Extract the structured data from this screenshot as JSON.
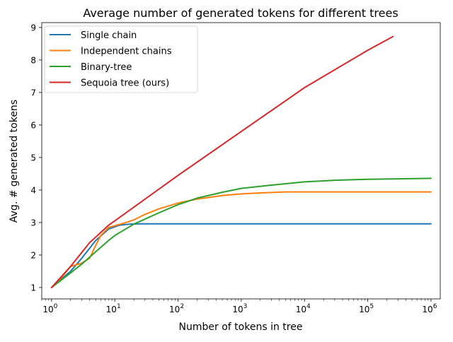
{
  "chart_data": {
    "type": "line",
    "title": "Average number of generated tokens for different trees",
    "xlabel": "Number of tokens in tree",
    "ylabel": "Avg. # generated tokens",
    "xscale": "log",
    "xlim": [
      0.7,
      1400000
    ],
    "ylim": [
      0.65,
      9.15
    ],
    "grid": false,
    "legend_position": "top-left",
    "xticks": [
      {
        "value": 1,
        "base": "10",
        "exp": "0"
      },
      {
        "value": 10,
        "base": "10",
        "exp": "1"
      },
      {
        "value": 100,
        "base": "10",
        "exp": "2"
      },
      {
        "value": 1000,
        "base": "10",
        "exp": "3"
      },
      {
        "value": 10000,
        "base": "10",
        "exp": "4"
      },
      {
        "value": 100000,
        "base": "10",
        "exp": "5"
      },
      {
        "value": 1000000,
        "base": "10",
        "exp": "6"
      }
    ],
    "yticks": [
      {
        "value": 1,
        "label": "1"
      },
      {
        "value": 2,
        "label": "2"
      },
      {
        "value": 3,
        "label": "3"
      },
      {
        "value": 4,
        "label": "4"
      },
      {
        "value": 5,
        "label": "5"
      },
      {
        "value": 6,
        "label": "6"
      },
      {
        "value": 7,
        "label": "7"
      },
      {
        "value": 8,
        "label": "8"
      },
      {
        "value": 9,
        "label": "9"
      }
    ],
    "series": [
      {
        "name": "Single chain",
        "color": "#1f77b4",
        "points": [
          [
            1,
            1.0
          ],
          [
            2,
            1.5
          ],
          [
            3,
            1.9
          ],
          [
            5,
            2.45
          ],
          [
            8,
            2.8
          ],
          [
            12,
            2.92
          ],
          [
            17,
            2.95
          ],
          [
            25,
            2.96
          ],
          [
            100,
            2.96
          ],
          [
            1000,
            2.96
          ],
          [
            10000,
            2.96
          ],
          [
            100000,
            2.96
          ],
          [
            1000000,
            2.96
          ]
        ]
      },
      {
        "name": "Independent chains",
        "color": "#ff7f0e",
        "points": [
          [
            1,
            1.0
          ],
          [
            1.5,
            1.35
          ],
          [
            2,
            1.65
          ],
          [
            3,
            1.75
          ],
          [
            4,
            1.9
          ],
          [
            5,
            2.3
          ],
          [
            6,
            2.6
          ],
          [
            8,
            2.85
          ],
          [
            10,
            2.9
          ],
          [
            15,
            3.0
          ],
          [
            20,
            3.08
          ],
          [
            30,
            3.25
          ],
          [
            50,
            3.42
          ],
          [
            100,
            3.6
          ],
          [
            200,
            3.72
          ],
          [
            500,
            3.83
          ],
          [
            1000,
            3.88
          ],
          [
            2000,
            3.91
          ],
          [
            5000,
            3.94
          ],
          [
            10000,
            3.94
          ],
          [
            100000,
            3.94
          ],
          [
            1000000,
            3.94
          ]
        ]
      },
      {
        "name": "Binary-tree",
        "color": "#2ca02c",
        "points": [
          [
            1,
            1.0
          ],
          [
            2,
            1.45
          ],
          [
            3,
            1.72
          ],
          [
            5,
            2.1
          ],
          [
            8,
            2.45
          ],
          [
            10,
            2.6
          ],
          [
            20,
            2.95
          ],
          [
            50,
            3.3
          ],
          [
            100,
            3.55
          ],
          [
            200,
            3.75
          ],
          [
            500,
            3.93
          ],
          [
            1000,
            4.05
          ],
          [
            3000,
            4.15
          ],
          [
            10000,
            4.25
          ],
          [
            30000,
            4.3
          ],
          [
            100000,
            4.33
          ],
          [
            1000000,
            4.36
          ]
        ]
      },
      {
        "name": "Sequoia tree (ours)",
        "color": "#d62728",
        "points": [
          [
            1,
            1.0
          ],
          [
            2,
            1.65
          ],
          [
            4,
            2.38
          ],
          [
            8,
            2.92
          ],
          [
            10,
            3.05
          ],
          [
            100,
            4.45
          ],
          [
            1000,
            5.8
          ],
          [
            10000,
            7.15
          ],
          [
            100000,
            8.3
          ],
          [
            250000,
            8.72
          ]
        ]
      }
    ]
  }
}
